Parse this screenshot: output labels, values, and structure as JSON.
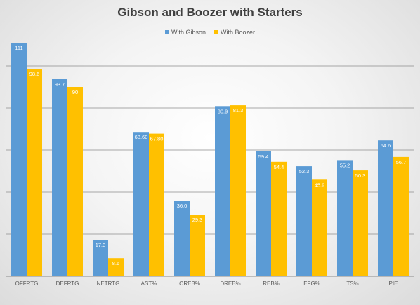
{
  "colors": {
    "gibson": "#5b9bd5",
    "boozer": "#ffc000",
    "grid": "#8c8c8c",
    "axis_text": "#595959"
  },
  "chart_data": {
    "type": "bar",
    "title": "Gibson and Boozer with Starters",
    "xlabel": "",
    "ylabel": "",
    "ylim": [
      0,
      120
    ],
    "grid": true,
    "legend": "top-center",
    "categories": [
      "OFFRTG",
      "DEFRTG",
      "NETRTG",
      "AST%",
      "OREB%",
      "DREB%",
      "REB%",
      "EFG%",
      "TS%",
      "PIE"
    ],
    "series": [
      {
        "name": "With Gibson",
        "values": [
          111,
          93.7,
          17.3,
          68.6,
          36.0,
          80.9,
          59.4,
          52.3,
          55.2,
          64.6
        ],
        "labels": [
          "111",
          "93.7",
          "17.3",
          "68.60",
          "36.0",
          "80.9",
          "59.4",
          "52.3",
          "55.2",
          "64.6"
        ]
      },
      {
        "name": "With Boozer",
        "values": [
          98.6,
          90,
          8.6,
          67.8,
          29.3,
          81.3,
          54.4,
          45.9,
          50.3,
          56.7
        ],
        "labels": [
          "98.6",
          "90",
          "8.6",
          "67.80",
          "29.3",
          "81.3",
          "54.4",
          "45.9",
          "50.3",
          "56.7"
        ]
      }
    ]
  }
}
